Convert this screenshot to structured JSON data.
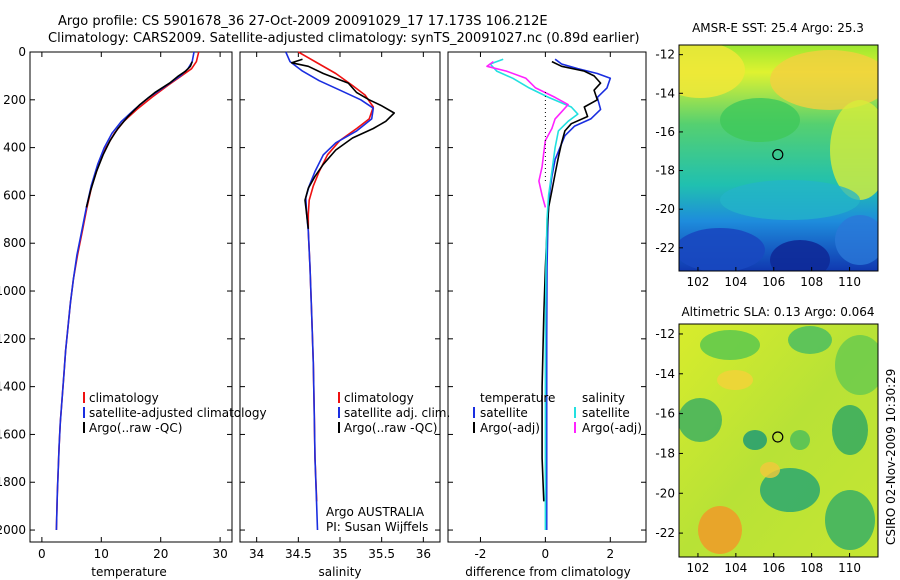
{
  "header": {
    "line1": "Argo profile: CS 5901678_36 27-Oct-2009 20091029_17 17.173S 106.212E",
    "line2": "Climatology: CARS2009. Satellite-adjusted climatology: synTS_20091027.nc (0.89d earlier)"
  },
  "credit": "CSIRO 02-Nov-2009 10:30:29",
  "colors": {
    "climatology": "#ee1111",
    "satellite": "#1a2ee0",
    "argo": "#000000",
    "argo_salinity_diff": "#ff22ff",
    "satellite_salinity_diff": "#22e0e0"
  },
  "chart_data": [
    {
      "id": "temperature",
      "type": "line",
      "xlabel": "temperature",
      "xlim": [
        -2,
        32
      ],
      "ylim": [
        2050,
        0
      ],
      "xticks": [
        0,
        10,
        20,
        30
      ],
      "yticks": [
        0,
        200,
        400,
        600,
        800,
        1000,
        1200,
        1400,
        1600,
        1800,
        2000
      ],
      "legend": [
        "climatology",
        "satellite-adjusted climatology",
        "Argo(..raw -QC)"
      ],
      "series": [
        {
          "name": "climatology",
          "color": "#ee1111",
          "points": [
            [
              26.4,
              0
            ],
            [
              26.0,
              40
            ],
            [
              25.2,
              70
            ],
            [
              23.5,
              100
            ],
            [
              21.2,
              140
            ],
            [
              18.5,
              190
            ],
            [
              16,
              240
            ],
            [
              13.8,
              290
            ],
            [
              12.2,
              340
            ],
            [
              10.8,
              400
            ],
            [
              9.6,
              470
            ],
            [
              8.4,
              560
            ],
            [
              7.6,
              650
            ],
            [
              6.8,
              750
            ],
            [
              6.0,
              850
            ],
            [
              5.3,
              950
            ],
            [
              4.8,
              1050
            ],
            [
              4.4,
              1150
            ],
            [
              4.0,
              1250
            ],
            [
              3.7,
              1350
            ],
            [
              3.4,
              1450
            ],
            [
              3.1,
              1550
            ],
            [
              2.9,
              1650
            ],
            [
              2.75,
              1750
            ],
            [
              2.6,
              1850
            ],
            [
              2.5,
              1950
            ],
            [
              2.45,
              2000
            ]
          ]
        },
        {
          "name": "satellite-adjusted climatology",
          "color": "#1a2ee0",
          "points": [
            [
              25.6,
              0
            ],
            [
              25.3,
              40
            ],
            [
              24.6,
              70
            ],
            [
              23.3,
              100
            ],
            [
              21.0,
              140
            ],
            [
              18.0,
              190
            ],
            [
              15.6,
              240
            ],
            [
              13.4,
              290
            ],
            [
              11.8,
              340
            ],
            [
              10.5,
              400
            ],
            [
              9.4,
              470
            ],
            [
              8.3,
              560
            ],
            [
              7.5,
              650
            ],
            [
              6.7,
              750
            ],
            [
              5.9,
              850
            ],
            [
              5.3,
              950
            ],
            [
              4.8,
              1050
            ],
            [
              4.4,
              1150
            ],
            [
              4.0,
              1250
            ],
            [
              3.7,
              1350
            ],
            [
              3.4,
              1450
            ],
            [
              3.1,
              1550
            ],
            [
              2.9,
              1650
            ],
            [
              2.75,
              1750
            ],
            [
              2.6,
              1850
            ],
            [
              2.5,
              1950
            ],
            [
              2.45,
              2000
            ]
          ]
        },
        {
          "name": "Argo(..raw -QC)",
          "color": "#000000",
          "points": [
            [
              25.3,
              40
            ],
            [
              25.0,
              60
            ],
            [
              24.2,
              80
            ],
            [
              23.0,
              100
            ],
            [
              21.5,
              130
            ],
            [
              19.0,
              170
            ],
            [
              16.5,
              220
            ],
            [
              14.5,
              270
            ],
            [
              12.8,
              320
            ],
            [
              11.5,
              370
            ],
            [
              10.3,
              430
            ],
            [
              9.2,
              500
            ],
            [
              8.2,
              580
            ],
            [
              7.5,
              650
            ]
          ]
        }
      ]
    },
    {
      "id": "salinity",
      "type": "line",
      "xlabel": "salinity",
      "xlim": [
        33.8,
        36.2
      ],
      "ylim": [
        2050,
        0
      ],
      "xticks": [
        34,
        34.5,
        35,
        35.5,
        36
      ],
      "legend": [
        "climatology",
        "satellite adj. clim.",
        "Argo(..raw -QC)"
      ],
      "annotation": [
        "Argo AUSTRALIA",
        "PI: Susan Wijffels"
      ],
      "series": [
        {
          "name": "climatology",
          "color": "#ee1111",
          "points": [
            [
              34.5,
              0
            ],
            [
              34.6,
              20
            ],
            [
              34.75,
              50
            ],
            [
              34.95,
              90
            ],
            [
              35.15,
              140
            ],
            [
              35.3,
              180
            ],
            [
              35.4,
              230
            ],
            [
              35.35,
              280
            ],
            [
              35.2,
              320
            ],
            [
              35.0,
              370
            ],
            [
              34.85,
              430
            ],
            [
              34.75,
              500
            ],
            [
              34.68,
              560
            ],
            [
              34.63,
              620
            ],
            [
              34.62,
              680
            ],
            [
              34.62,
              750
            ],
            [
              34.64,
              900
            ],
            [
              34.66,
              1100
            ],
            [
              34.68,
              1300
            ],
            [
              34.69,
              1500
            ],
            [
              34.7,
              1700
            ],
            [
              34.72,
              1880
            ]
          ]
        },
        {
          "name": "satellite adj. clim.",
          "color": "#1a2ee0",
          "points": [
            [
              34.35,
              0
            ],
            [
              34.4,
              40
            ],
            [
              34.55,
              80
            ],
            [
              34.75,
              120
            ],
            [
              35.0,
              160
            ],
            [
              35.25,
              200
            ],
            [
              35.4,
              235
            ],
            [
              35.38,
              280
            ],
            [
              35.2,
              330
            ],
            [
              34.95,
              380
            ],
            [
              34.8,
              430
            ],
            [
              34.7,
              500
            ],
            [
              34.63,
              560
            ],
            [
              34.59,
              610
            ],
            [
              34.6,
              680
            ],
            [
              34.62,
              750
            ],
            [
              34.64,
              900
            ],
            [
              34.66,
              1100
            ],
            [
              34.68,
              1300
            ],
            [
              34.69,
              1500
            ],
            [
              34.7,
              1700
            ],
            [
              34.72,
              1900
            ],
            [
              34.73,
              2000
            ]
          ]
        },
        {
          "name": "Argo(..raw -QC)",
          "color": "#000000",
          "points": [
            [
              34.55,
              30
            ],
            [
              34.42,
              45
            ],
            [
              34.62,
              60
            ],
            [
              34.8,
              90
            ],
            [
              35.1,
              130
            ],
            [
              35.2,
              170
            ],
            [
              35.35,
              200
            ],
            [
              35.5,
              225
            ],
            [
              35.65,
              255
            ],
            [
              35.55,
              290
            ],
            [
              35.4,
              320
            ],
            [
              35.15,
              360
            ],
            [
              34.95,
              410
            ],
            [
              34.8,
              470
            ],
            [
              34.7,
              520
            ],
            [
              34.62,
              570
            ],
            [
              34.58,
              620
            ],
            [
              34.6,
              680
            ],
            [
              34.62,
              740
            ]
          ]
        }
      ]
    },
    {
      "id": "difference",
      "type": "line",
      "xlabel": "difference from climatology",
      "xlim": [
        -3,
        3.1
      ],
      "ylim": [
        2050,
        0
      ],
      "xticks": [
        -2,
        0,
        2
      ],
      "legend_temperature": [
        "temperature",
        "satellite",
        "Argo(-adj)"
      ],
      "legend_salinity": [
        "salinity",
        "satellite",
        "Argo(-adj)"
      ],
      "series": [
        {
          "name": "temperature satellite",
          "color": "#1a2ee0",
          "points": [
            [
              0.3,
              30
            ],
            [
              0.5,
              50
            ],
            [
              1.0,
              70
            ],
            [
              1.6,
              90
            ],
            [
              2.0,
              110
            ],
            [
              1.9,
              150
            ],
            [
              1.6,
              190
            ],
            [
              1.7,
              240
            ],
            [
              1.4,
              280
            ],
            [
              0.9,
              310
            ],
            [
              0.6,
              350
            ],
            [
              0.45,
              400
            ],
            [
              0.3,
              450
            ],
            [
              0.2,
              520
            ],
            [
              0.12,
              600
            ],
            [
              0.08,
              700
            ],
            [
              0.05,
              900
            ],
            [
              0.04,
              1200
            ],
            [
              0.04,
              1500
            ],
            [
              0.04,
              1800
            ],
            [
              0.04,
              2000
            ]
          ]
        },
        {
          "name": "temperature Argo(-adj)",
          "color": "#000000",
          "points": [
            [
              0.2,
              40
            ],
            [
              0.5,
              60
            ],
            [
              1.2,
              80
            ],
            [
              1.5,
              100
            ],
            [
              1.7,
              130
            ],
            [
              1.5,
              160
            ],
            [
              1.6,
              200
            ],
            [
              1.2,
              230
            ],
            [
              1.3,
              270
            ],
            [
              0.8,
              300
            ],
            [
              0.6,
              330
            ],
            [
              0.5,
              380
            ],
            [
              0.4,
              440
            ],
            [
              0.3,
              510
            ],
            [
              0.2,
              580
            ],
            [
              0.1,
              650
            ],
            [
              0.05,
              750
            ],
            [
              0.0,
              900
            ],
            [
              -0.05,
              1100
            ],
            [
              -0.1,
              1400
            ],
            [
              -0.1,
              1700
            ],
            [
              -0.05,
              1880
            ]
          ]
        },
        {
          "name": "salinity satellite",
          "color": "#22e0e0",
          "points": [
            [
              -1.3,
              30
            ],
            [
              -1.7,
              50
            ],
            [
              -1.5,
              80
            ],
            [
              -1.0,
              110
            ],
            [
              -0.5,
              150
            ],
            [
              0.1,
              190
            ],
            [
              0.8,
              230
            ],
            [
              1.0,
              260
            ],
            [
              0.7,
              290
            ],
            [
              0.4,
              330
            ],
            [
              0.3,
              400
            ],
            [
              0.2,
              500
            ],
            [
              0.1,
              600
            ],
            [
              0.05,
              700
            ],
            [
              0.02,
              900
            ],
            [
              0.0,
              1200
            ],
            [
              0.0,
              1500
            ],
            [
              0.0,
              1800
            ],
            [
              0.0,
              2000
            ]
          ]
        },
        {
          "name": "salinity Argo(-adj)",
          "color": "#ff22ff",
          "points": [
            [
              -1.6,
              40
            ],
            [
              -1.8,
              60
            ],
            [
              -1.2,
              80
            ],
            [
              -0.6,
              110
            ],
            [
              -0.3,
              150
            ],
            [
              0.3,
              190
            ],
            [
              0.7,
              220
            ],
            [
              0.5,
              250
            ],
            [
              0.3,
              280
            ],
            [
              0.2,
              320
            ],
            [
              0.0,
              370
            ],
            [
              -0.05,
              420
            ],
            [
              -0.1,
              480
            ],
            [
              -0.2,
              540
            ],
            [
              -0.1,
              600
            ],
            [
              0.0,
              650
            ]
          ]
        }
      ]
    },
    {
      "id": "sst_map",
      "type": "heatmap",
      "title": "AMSR-E SST: 25.4  Argo: 25.3",
      "xlim": [
        101,
        111.5
      ],
      "ylim": [
        -23.2,
        -11.5
      ],
      "xticks": [
        102,
        104,
        106,
        108,
        110
      ],
      "yticks": [
        -12,
        -14,
        -16,
        -18,
        -20,
        -22
      ],
      "marker": [
        106.212,
        -17.173
      ]
    },
    {
      "id": "sla_map",
      "type": "heatmap",
      "title": "Altimetric SLA: 0.13  Argo: 0.064",
      "xlim": [
        101,
        111.5
      ],
      "ylim": [
        -23.2,
        -11.5
      ],
      "xticks": [
        102,
        104,
        106,
        108,
        110
      ],
      "yticks": [
        -12,
        -14,
        -16,
        -18,
        -20,
        -22
      ],
      "marker": [
        106.212,
        -17.173
      ]
    }
  ]
}
